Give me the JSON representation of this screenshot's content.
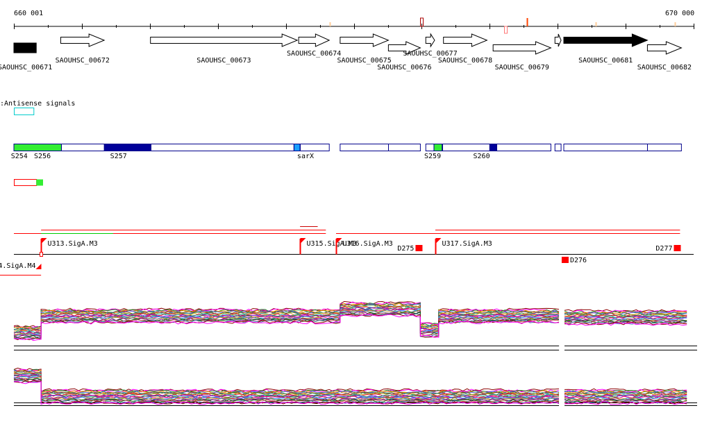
{
  "axis": {
    "start_label": "660 001",
    "end_label": "670 000",
    "start": 660001,
    "end": 670000
  },
  "colors": {
    "axis": "#000000",
    "gene_fill": "#ffffff",
    "gene_highlight": "#000000",
    "segment_outline": "#00008b",
    "segment_light_green": "#33ee33",
    "segment_dark_blue": "#000099",
    "segment_sky_blue": "#1a9fff",
    "antisense_outline": "#00cccc",
    "promoter_red": "#ff0000",
    "highlight_green": "#00cc00",
    "expr_base": "#000000"
  },
  "genes": [
    {
      "id": "g671",
      "label": "SAOUHSC_00671",
      "start": 660001,
      "end": 660330,
      "strand": "+",
      "highlight": true,
      "row": 2
    },
    {
      "id": "g672",
      "label": "SAOUHSC_00672",
      "start": 660690,
      "end": 661330,
      "strand": "+",
      "highlight": false,
      "row": 1
    },
    {
      "id": "g673",
      "label": "SAOUHSC_00673",
      "start": 662010,
      "end": 664170,
      "strand": "+",
      "highlight": false,
      "row": 1
    },
    {
      "id": "g674",
      "label": "SAOUHSC_00674",
      "start": 664190,
      "end": 664640,
      "strand": "+",
      "highlight": false,
      "row": 1
    },
    {
      "id": "g675",
      "label": "SAOUHSC_00675",
      "start": 664800,
      "end": 665510,
      "strand": "+",
      "highlight": false,
      "row": 1
    },
    {
      "id": "g676",
      "label": "SAOUHSC_00676",
      "start": 665510,
      "end": 665980,
      "strand": "+",
      "highlight": false,
      "row": 2
    },
    {
      "id": "g677",
      "label": "SAOUHSC_00677",
      "start": 666060,
      "end": 666190,
      "strand": "+",
      "highlight": false,
      "row": 1
    },
    {
      "id": "g678",
      "label": "SAOUHSC_00678",
      "start": 666320,
      "end": 666960,
      "strand": "+",
      "highlight": false,
      "row": 1
    },
    {
      "id": "g679",
      "label": "SAOUHSC_00679",
      "start": 667050,
      "end": 667900,
      "strand": "+",
      "highlight": false,
      "row": 2
    },
    {
      "id": "g680",
      "label": "",
      "start": 667960,
      "end": 668050,
      "strand": "+",
      "highlight": false,
      "row": 1
    },
    {
      "id": "g681",
      "label": "SAOUHSC_00681",
      "start": 668090,
      "end": 669320,
      "strand": "+",
      "highlight": true,
      "row": 1
    },
    {
      "id": "g682",
      "label": "SAOUHSC_00682",
      "start": 669320,
      "end": 669820,
      "strand": "+",
      "highlight": false,
      "row": 2
    }
  ],
  "axis_marks": [
    {
      "pos": 664650,
      "color": "#ffcc99",
      "height": 6,
      "dir": "up"
    },
    {
      "pos": 666000,
      "color": "#aa0000",
      "height": 12,
      "dir": "up",
      "box": true
    },
    {
      "pos": 667230,
      "color": "#ff7777",
      "height": 10,
      "dir": "down",
      "box": true
    },
    {
      "pos": 667550,
      "color": "#ff4400",
      "height": 12,
      "dir": "up"
    },
    {
      "pos": 668560,
      "color": "#ffcc99",
      "height": 6,
      "dir": "up"
    },
    {
      "pos": 669720,
      "color": "#ffcc99",
      "height": 6,
      "dir": "up"
    }
  ],
  "antisense": {
    "title": ":Antisense signals",
    "box": {
      "start": 660001,
      "end": 660290
    }
  },
  "segments": [
    {
      "start": 660001,
      "end": 664640,
      "breaks": [
        660700,
        661330,
        662010,
        664120,
        664210
      ]
    },
    {
      "start": 664800,
      "end": 665980,
      "breaks": [
        665510
      ]
    },
    {
      "start": 666060,
      "end": 666180,
      "breaks": []
    },
    {
      "start": 666180,
      "end": 667900,
      "breaks": [
        666300,
        667000,
        667100
      ]
    },
    {
      "start": 667960,
      "end": 668050,
      "breaks": []
    },
    {
      "start": 668090,
      "end": 669820,
      "breaks": [
        669320
      ]
    }
  ],
  "segment_fills": [
    {
      "start": 660001,
      "end": 660700,
      "color": "#33ee33"
    },
    {
      "start": 661330,
      "end": 662010,
      "color": "#000099"
    },
    {
      "start": 664120,
      "end": 664210,
      "color": "#1a9fff"
    },
    {
      "start": 666180,
      "end": 666300,
      "color": "#33ee33"
    },
    {
      "start": 667000,
      "end": 667100,
      "color": "#000099"
    }
  ],
  "segment_labels": [
    {
      "label": "S254",
      "pos": 660080
    },
    {
      "label": "S256",
      "pos": 660420
    },
    {
      "label": "S257",
      "pos": 661540
    },
    {
      "label": "sarX",
      "pos": 664290
    },
    {
      "label": "S259",
      "pos": 666160
    },
    {
      "label": "S260",
      "pos": 666880
    }
  ],
  "small_box": {
    "start": 660001,
    "end": 660330,
    "fill_start": 660330,
    "fill_end": 660430
  },
  "promoter_lines": [
    {
      "start": 660001,
      "end": 664590,
      "color": "#ff0000",
      "row": 0
    },
    {
      "start": 660401,
      "end": 664590,
      "color": "#ff0000",
      "row": 1
    },
    {
      "start": 660401,
      "end": 661460,
      "color": "#00cc00",
      "row": 2
    },
    {
      "start": 664210,
      "end": 664470,
      "color": "#cc0000",
      "row": 3
    },
    {
      "start": 664740,
      "end": 669800,
      "color": "#ff0000",
      "row": 0
    },
    {
      "start": 666200,
      "end": 669800,
      "color": "#ff0000",
      "row": 1
    }
  ],
  "promoters": [
    {
      "label": "U313.SigA.M3",
      "pos": 660401,
      "strand": "+"
    },
    {
      "label": "U315.SigA.M3",
      "pos": 664210,
      "strand": "+"
    },
    {
      "label": "U316.SigA.M3",
      "pos": 664740,
      "strand": "+"
    },
    {
      "label": "U317.SigA.M3",
      "pos": 666200,
      "strand": "+"
    },
    {
      "label": "4.SigA.M4",
      "pos": 660401,
      "strand": "-"
    }
  ],
  "terminators": [
    {
      "label": "D275",
      "pos": 665960,
      "row": 0
    },
    {
      "label": "D276",
      "pos": 668110,
      "row": 1
    },
    {
      "label": "D277",
      "pos": 669760,
      "row": 0
    }
  ],
  "expression_tracks": [
    {
      "id": "track1",
      "base_lines_offsets": [
        18,
        24
      ],
      "profile": [
        {
          "start": 660001,
          "end": 660400,
          "level": 0
        },
        {
          "start": 660400,
          "end": 664800,
          "level": -24
        },
        {
          "start": 664800,
          "end": 665980,
          "level": -34
        },
        {
          "start": 665980,
          "end": 666250,
          "level": -4
        },
        {
          "start": 666250,
          "end": 668020,
          "level": -24
        },
        {
          "start": 668100,
          "end": 669900,
          "level": -22
        }
      ],
      "gaps": [
        668020,
        668100
      ]
    },
    {
      "id": "track2",
      "base_lines_offsets": [
        8,
        12
      ],
      "profile": [
        {
          "start": 660001,
          "end": 660400,
          "level": -30
        },
        {
          "start": 660400,
          "end": 668020,
          "level": 0
        },
        {
          "start": 668100,
          "end": 669900,
          "level": 0
        }
      ],
      "gaps": [
        668020,
        668100
      ]
    }
  ]
}
